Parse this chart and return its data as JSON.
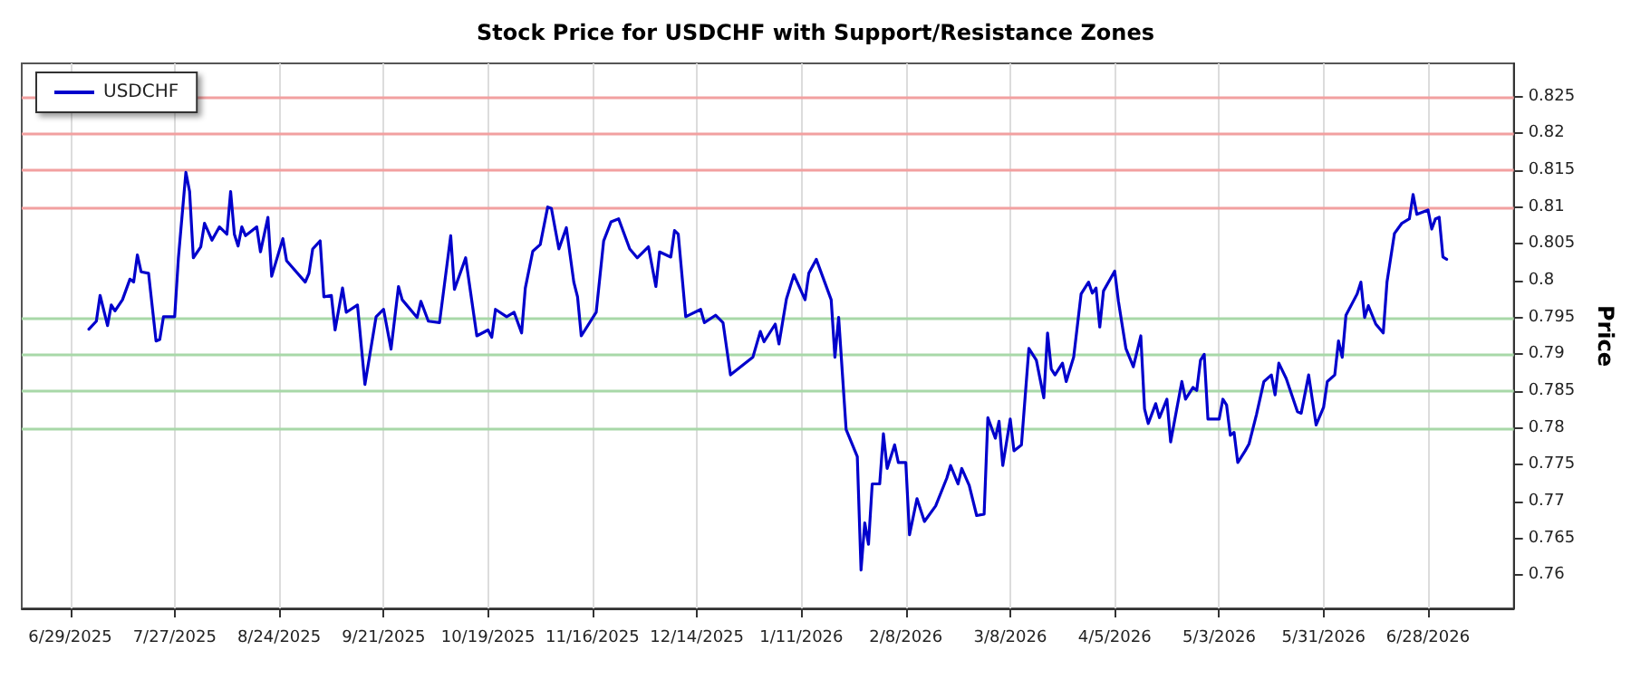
{
  "chart_data": {
    "type": "line",
    "title": "Stock Price for USDCHF with Support/Resistance Zones",
    "ylabel": "Price",
    "x": [
      "2025-07-04",
      "2025-07-06",
      "2025-07-07",
      "2025-07-09",
      "2025-07-10",
      "2025-07-11",
      "2025-07-13",
      "2025-07-15",
      "2025-07-16",
      "2025-07-17",
      "2025-07-18",
      "2025-07-20",
      "2025-07-22",
      "2025-07-23",
      "2025-07-24",
      "2025-07-27",
      "2025-07-28",
      "2025-07-30",
      "2025-07-31",
      "2025-08-01",
      "2025-08-03",
      "2025-08-04",
      "2025-08-06",
      "2025-08-08",
      "2025-08-10",
      "2025-08-11",
      "2025-08-12",
      "2025-08-13",
      "2025-08-14",
      "2025-08-15",
      "2025-08-18",
      "2025-08-19",
      "2025-08-21",
      "2025-08-22",
      "2025-08-25",
      "2025-08-26",
      "2025-08-31",
      "2025-09-01",
      "2025-09-02",
      "2025-09-04",
      "2025-09-05",
      "2025-09-07",
      "2025-09-08",
      "2025-09-10",
      "2025-09-11",
      "2025-09-14",
      "2025-09-16",
      "2025-09-19",
      "2025-09-21",
      "2025-09-23",
      "2025-09-25",
      "2025-09-26",
      "2025-09-30",
      "2025-10-01",
      "2025-10-03",
      "2025-10-06",
      "2025-10-09",
      "2025-10-10",
      "2025-10-13",
      "2025-10-16",
      "2025-10-19",
      "2025-10-20",
      "2025-10-21",
      "2025-10-24",
      "2025-10-26",
      "2025-10-28",
      "2025-10-29",
      "2025-10-31",
      "2025-11-02",
      "2025-11-04",
      "2025-11-05",
      "2025-11-07",
      "2025-11-09",
      "2025-11-11",
      "2025-11-12",
      "2025-11-13",
      "2025-11-17",
      "2025-11-19",
      "2025-11-21",
      "2025-11-23",
      "2025-11-26",
      "2025-11-28",
      "2025-12-01",
      "2025-12-03",
      "2025-12-04",
      "2025-12-07",
      "2025-12-08",
      "2025-12-09",
      "2025-12-11",
      "2025-12-15",
      "2025-12-16",
      "2025-12-19",
      "2025-12-21",
      "2025-12-23",
      "2025-12-26",
      "2025-12-29",
      "2025-12-31",
      "2026-01-01",
      "2026-01-04",
      "2026-01-05",
      "2026-01-07",
      "2026-01-09",
      "2026-01-12",
      "2026-01-13",
      "2026-01-15",
      "2026-01-19",
      "2026-01-20",
      "2026-01-21",
      "2026-01-23",
      "2026-01-26",
      "2026-01-27",
      "2026-01-28",
      "2026-01-29",
      "2026-01-30",
      "2026-02-01",
      "2026-02-02",
      "2026-02-03",
      "2026-02-05",
      "2026-02-06",
      "2026-02-08",
      "2026-02-09",
      "2026-02-11",
      "2026-02-13",
      "2026-02-16",
      "2026-02-19",
      "2026-02-20",
      "2026-02-22",
      "2026-02-23",
      "2026-02-25",
      "2026-02-27",
      "2026-03-01",
      "2026-03-02",
      "2026-03-04",
      "2026-03-05",
      "2026-03-06",
      "2026-03-08",
      "2026-03-09",
      "2026-03-11",
      "2026-03-13",
      "2026-03-15",
      "2026-03-17",
      "2026-03-18",
      "2026-03-19",
      "2026-03-20",
      "2026-03-22",
      "2026-03-23",
      "2026-03-25",
      "2026-03-27",
      "2026-03-29",
      "2026-03-30",
      "2026-03-31",
      "2026-04-01",
      "2026-04-02",
      "2026-04-05",
      "2026-04-06",
      "2026-04-08",
      "2026-04-10",
      "2026-04-12",
      "2026-04-13",
      "2026-04-14",
      "2026-04-16",
      "2026-04-17",
      "2026-04-19",
      "2026-04-20",
      "2026-04-23",
      "2026-04-24",
      "2026-04-26",
      "2026-04-27",
      "2026-04-28",
      "2026-04-29",
      "2026-04-30",
      "2026-05-03",
      "2026-05-04",
      "2026-05-05",
      "2026-05-06",
      "2026-05-07",
      "2026-05-08",
      "2026-05-10",
      "2026-05-11",
      "2026-05-13",
      "2026-05-15",
      "2026-05-17",
      "2026-05-18",
      "2026-05-19",
      "2026-05-21",
      "2026-05-24",
      "2026-05-25",
      "2026-05-27",
      "2026-05-29",
      "2026-05-31",
      "2026-06-01",
      "2026-06-03",
      "2026-06-04",
      "2026-06-05",
      "2026-06-06",
      "2026-06-09",
      "2026-06-10",
      "2026-06-11",
      "2026-06-12",
      "2026-06-14",
      "2026-06-16",
      "2026-06-17",
      "2026-06-19",
      "2026-06-21",
      "2026-06-23",
      "2026-06-24",
      "2026-06-25",
      "2026-06-28",
      "2026-06-29",
      "2026-06-30",
      "2026-07-01",
      "2026-07-02",
      "2026-07-03"
    ],
    "series": [
      {
        "name": "USDCHF",
        "color": "#0000cc",
        "values": [
          0.7934,
          0.7945,
          0.798,
          0.7939,
          0.7967,
          0.7959,
          0.7974,
          0.8002,
          0.7998,
          0.8035,
          0.8012,
          0.801,
          0.7918,
          0.792,
          0.7951,
          0.7951,
          0.8031,
          0.8147,
          0.8121,
          0.8031,
          0.8046,
          0.8078,
          0.8055,
          0.8073,
          0.8063,
          0.8121,
          0.8063,
          0.8047,
          0.8073,
          0.8061,
          0.8073,
          0.8039,
          0.8086,
          0.8006,
          0.8057,
          0.8027,
          0.7998,
          0.801,
          0.8043,
          0.8054,
          0.7978,
          0.798,
          0.7933,
          0.799,
          0.7957,
          0.7967,
          0.7859,
          0.7951,
          0.7961,
          0.7907,
          0.7992,
          0.7974,
          0.795,
          0.7972,
          0.7945,
          0.7943,
          0.8061,
          0.7988,
          0.8031,
          0.7925,
          0.7933,
          0.7923,
          0.7961,
          0.7951,
          0.7957,
          0.7929,
          0.799,
          0.804,
          0.8049,
          0.81,
          0.8098,
          0.8043,
          0.8072,
          0.7998,
          0.7978,
          0.7925,
          0.7957,
          0.8054,
          0.808,
          0.8084,
          0.8043,
          0.8031,
          0.8046,
          0.7992,
          0.8039,
          0.8032,
          0.8068,
          0.8063,
          0.7951,
          0.7961,
          0.7943,
          0.7953,
          0.7943,
          0.7872,
          0.7884,
          0.7896,
          0.7931,
          0.7917,
          0.7941,
          0.7914,
          0.7975,
          0.8008,
          0.7974,
          0.801,
          0.8029,
          0.7974,
          0.7896,
          0.795,
          0.7798,
          0.7761,
          0.7607,
          0.7671,
          0.7642,
          0.7724,
          0.7724,
          0.7792,
          0.7745,
          0.7777,
          0.7753,
          0.7753,
          0.7655,
          0.7704,
          0.7673,
          0.7694,
          0.7732,
          0.7749,
          0.7724,
          0.7745,
          0.7722,
          0.7681,
          0.7683,
          0.7814,
          0.7786,
          0.7809,
          0.7749,
          0.7812,
          0.7769,
          0.7777,
          0.7908,
          0.7892,
          0.7841,
          0.7929,
          0.788,
          0.7872,
          0.7888,
          0.7863,
          0.7896,
          0.7982,
          0.7998,
          0.7983,
          0.799,
          0.7937,
          0.7986,
          0.8013,
          0.7972,
          0.7908,
          0.7883,
          0.7925,
          0.7826,
          0.7806,
          0.7833,
          0.7814,
          0.7839,
          0.7781,
          0.7863,
          0.7839,
          0.7855,
          0.7851,
          0.7892,
          0.79,
          0.7812,
          0.7812,
          0.7839,
          0.7831,
          0.779,
          0.7794,
          0.7753,
          0.7769,
          0.7778,
          0.7818,
          0.7863,
          0.7872,
          0.7845,
          0.7888,
          0.7867,
          0.7822,
          0.782,
          0.7872,
          0.7804,
          0.7828,
          0.7863,
          0.7872,
          0.7918,
          0.7896,
          0.7953,
          0.7982,
          0.7998,
          0.795,
          0.7966,
          0.7941,
          0.7929,
          0.7998,
          0.8064,
          0.8078,
          0.8084,
          0.8117,
          0.809,
          0.8096,
          0.807,
          0.8084,
          0.8086,
          0.8032,
          0.8029
        ]
      }
    ],
    "xlim": [
      "2025-06-16",
      "2026-07-21"
    ],
    "xticks": [
      {
        "value": "2025-06-29",
        "label": "6/29/2025"
      },
      {
        "value": "2025-07-27",
        "label": "7/27/2025"
      },
      {
        "value": "2025-08-24",
        "label": "8/24/2025"
      },
      {
        "value": "2025-09-21",
        "label": "9/21/2025"
      },
      {
        "value": "2025-10-19",
        "label": "10/19/2025"
      },
      {
        "value": "2025-11-16",
        "label": "11/16/2025"
      },
      {
        "value": "2025-12-14",
        "label": "12/14/2025"
      },
      {
        "value": "2026-01-11",
        "label": "1/11/2026"
      },
      {
        "value": "2026-02-08",
        "label": "2/8/2026"
      },
      {
        "value": "2026-03-08",
        "label": "3/8/2026"
      },
      {
        "value": "2026-04-05",
        "label": "4/5/2026"
      },
      {
        "value": "2026-05-03",
        "label": "5/3/2026"
      },
      {
        "value": "2026-05-31",
        "label": "5/31/2026"
      },
      {
        "value": "2026-06-28",
        "label": "6/28/2026"
      }
    ],
    "ylim": [
      0.7555,
      0.8295
    ],
    "yticks": [
      0.76,
      0.765,
      0.77,
      0.775,
      0.78,
      0.785,
      0.79,
      0.795,
      0.8,
      0.805,
      0.81,
      0.815,
      0.82,
      0.825
    ],
    "ref_lines": [
      {
        "axis": "y",
        "value": 0.81,
        "color": "#f2a0a0"
      },
      {
        "axis": "y",
        "value": 0.815,
        "color": "#f2a0a0"
      },
      {
        "axis": "y",
        "value": 0.82,
        "color": "#f2a0a0"
      },
      {
        "axis": "y",
        "value": 0.825,
        "color": "#f2a0a0"
      },
      {
        "axis": "y",
        "value": 0.78,
        "color": "#a8d8a8"
      },
      {
        "axis": "y",
        "value": 0.785,
        "color": "#a8d8a8"
      },
      {
        "axis": "y",
        "value": 0.79,
        "color": "#a8d8a8"
      },
      {
        "axis": "y",
        "value": 0.795,
        "color": "#a8d8a8"
      }
    ],
    "grid": "x",
    "legend": "top left",
    "marker": "none",
    "line_style": "solid"
  }
}
